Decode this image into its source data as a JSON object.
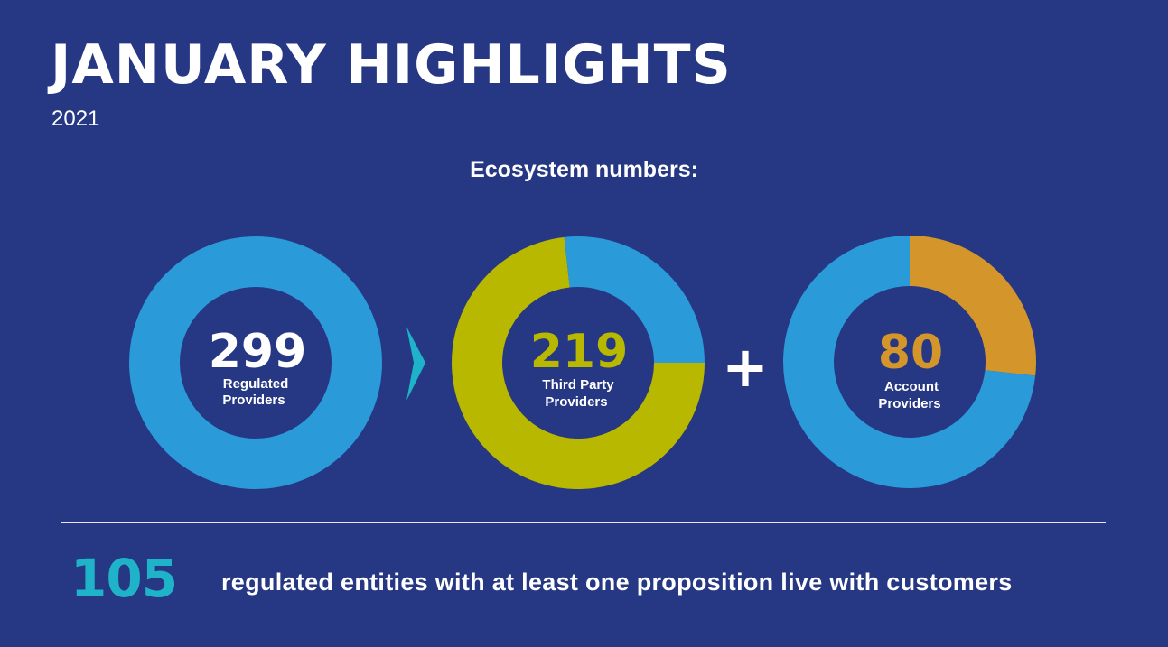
{
  "header": {
    "title": "JANUARY HIGHLIGHTS",
    "year": "2021"
  },
  "section_heading": "Ecosystem numbers:",
  "colors": {
    "background": "#263783",
    "ring_blue": "#2a9ad8",
    "tpp_olive": "#b8b800",
    "aspsp_orange": "#d4952b",
    "arrow_teal": "#1fb3c9",
    "footer_teal": "#1fb3c9"
  },
  "chart_data": [
    {
      "type": "pie",
      "center_value": "299",
      "center_label": [
        "Regulated",
        "Providers"
      ],
      "value_color": "#ffffff",
      "slices": [
        {
          "value": 299,
          "color": "#2a9ad8"
        }
      ]
    },
    {
      "type": "pie",
      "center_value": "219",
      "center_label": [
        "Third Party",
        "Providers"
      ],
      "value_color": "#b8b800",
      "slices": [
        {
          "value": 219,
          "color": "#b8b800"
        },
        {
          "value": 80,
          "color": "#2a9ad8"
        }
      ]
    },
    {
      "type": "pie",
      "center_value": "80",
      "center_label": [
        "Account",
        "Providers"
      ],
      "value_color": "#d4952b",
      "slices": [
        {
          "value": 80,
          "color": "#d4952b"
        },
        {
          "value": 219,
          "color": "#2a9ad8"
        }
      ]
    }
  ],
  "operators": {
    "arrow": "arrow-right-icon",
    "plus": "+"
  },
  "footer": {
    "number": "105",
    "text": "regulated entities with at least one proposition live with customers"
  }
}
